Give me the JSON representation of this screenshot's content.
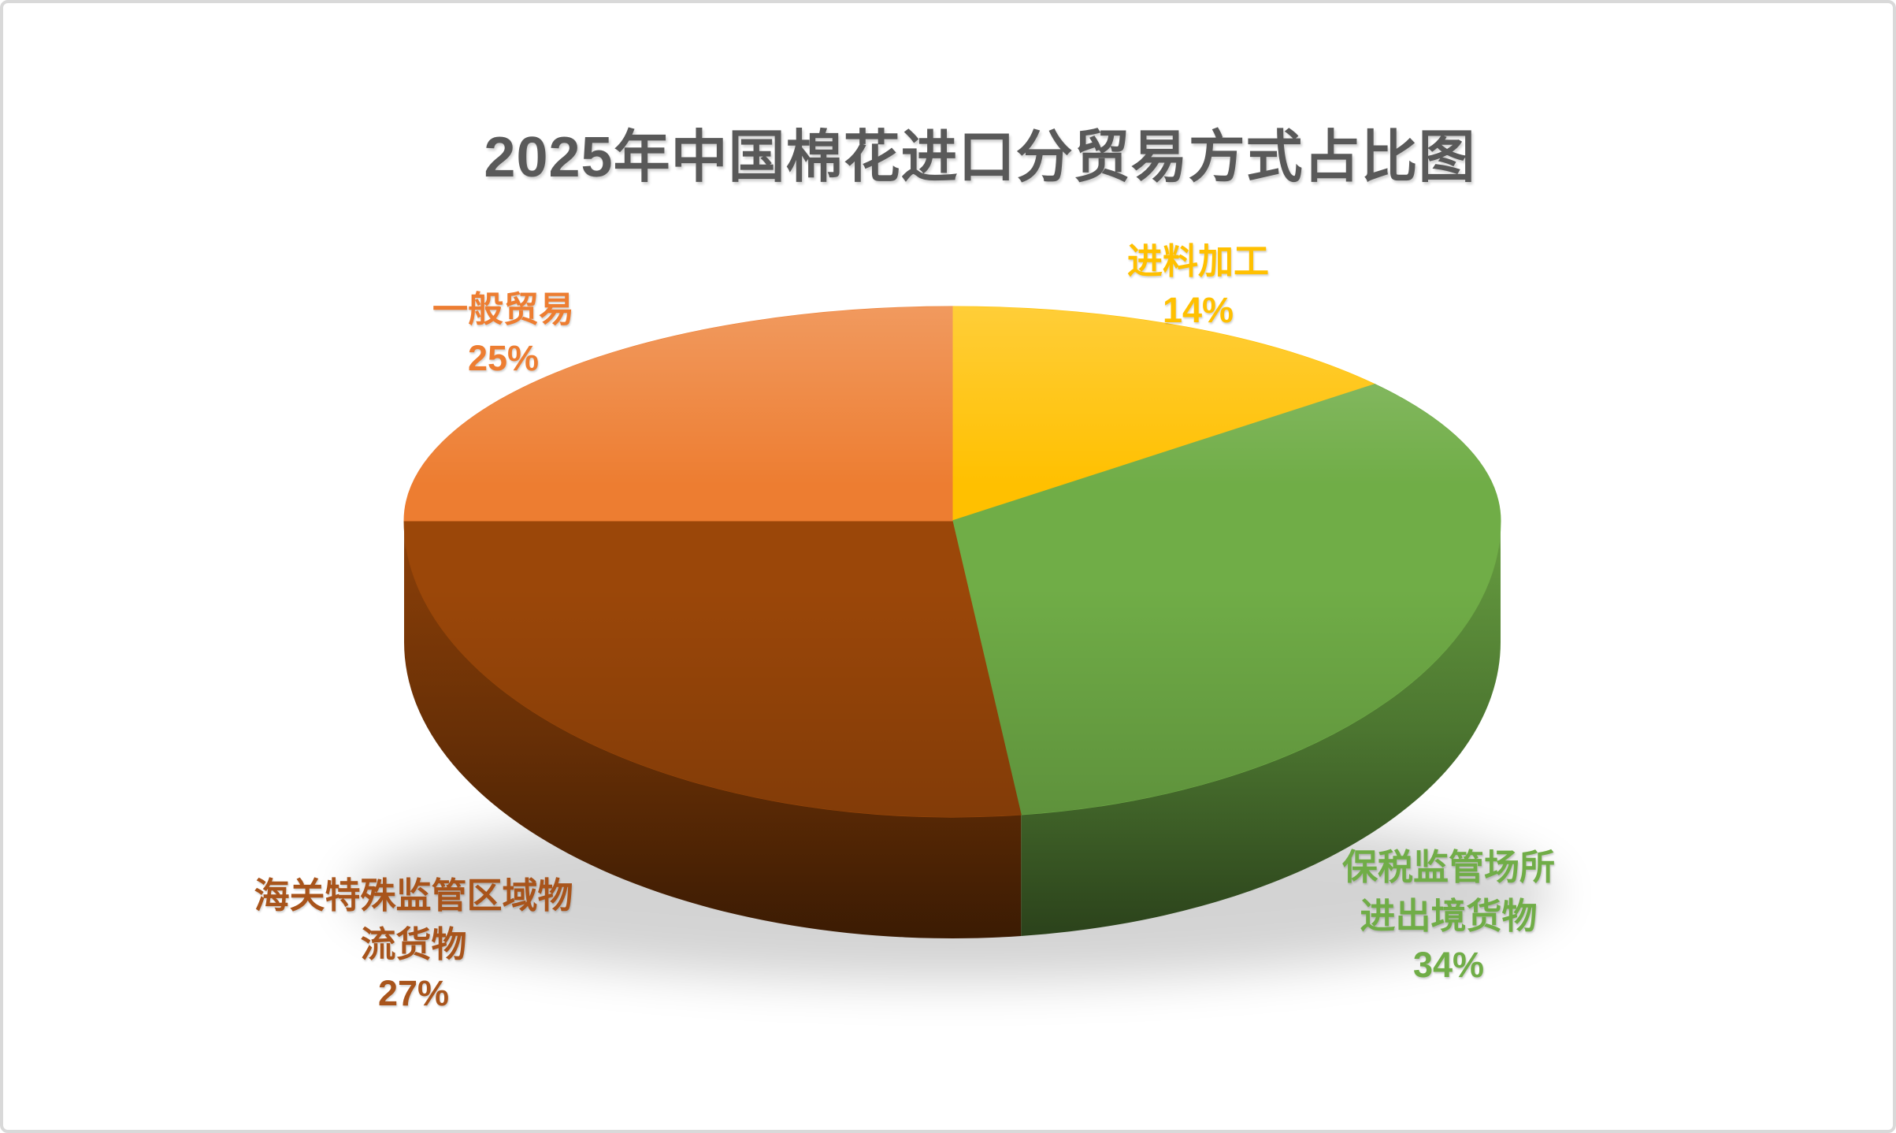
{
  "frame": {
    "background_color": "#ffffff",
    "border_color": "#d9d9d9"
  },
  "title": "2025年中国棉花进口分贸易方式占比图",
  "title_color": "#595959",
  "chart_data": {
    "type": "pie",
    "is_3d": true,
    "start_angle_deg": 0,
    "direction": "clockwise",
    "title": "2025年中国棉花进口分贸易方式占比图",
    "unit": "%",
    "legend": "none",
    "categories": [
      "进料加工",
      "保税监管场所进出境货物",
      "海关特殊监管区域物流货物",
      "一般贸易"
    ],
    "values": [
      14,
      34,
      27,
      25
    ],
    "colors": [
      "#FFC000",
      "#70AD47",
      "#9B4709",
      "#ED7D31"
    ],
    "labels": [
      {
        "lines": [
          "进料加工",
          "14%"
        ],
        "color": "#FFC000"
      },
      {
        "lines": [
          "保税监管场所",
          "进出境货物",
          "34%"
        ],
        "color": "#70AD47"
      },
      {
        "lines": [
          "海关特殊监管区域物",
          "流货物",
          "27%"
        ],
        "color": "#A8541B"
      },
      {
        "lines": [
          "一般贸易",
          "25%"
        ],
        "color": "#ED7D31"
      }
    ]
  }
}
